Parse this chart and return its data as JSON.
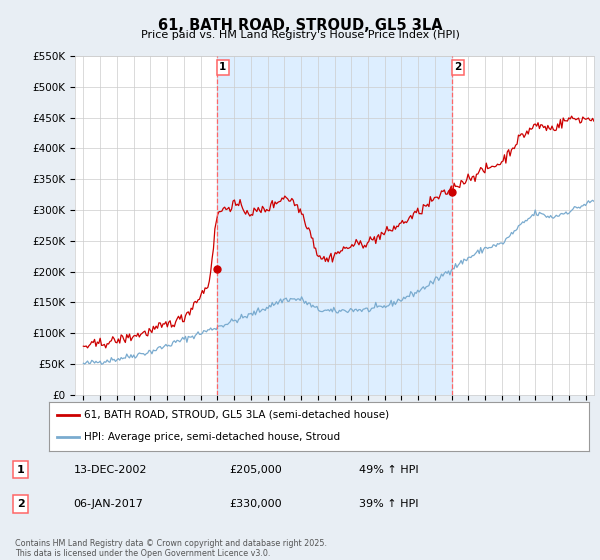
{
  "title": "61, BATH ROAD, STROUD, GL5 3LA",
  "subtitle": "Price paid vs. HM Land Registry's House Price Index (HPI)",
  "ylim": [
    0,
    550000
  ],
  "yticks": [
    0,
    50000,
    100000,
    150000,
    200000,
    250000,
    300000,
    350000,
    400000,
    450000,
    500000,
    550000
  ],
  "xlim_start": 1994.5,
  "xlim_end": 2025.5,
  "background_color": "#e8eef4",
  "plot_bg_color": "#ffffff",
  "grid_color": "#cccccc",
  "red_line_color": "#cc0000",
  "blue_line_color": "#7aabcf",
  "vline_color": "#ff6666",
  "shade_color": "#ddeeff",
  "vline1_x": 2002.96,
  "vline2_x": 2017.02,
  "dot1_x": 2002.96,
  "dot1_y": 205000,
  "dot2_x": 2017.02,
  "dot2_y": 330000,
  "legend_line1": "61, BATH ROAD, STROUD, GL5 3LA (semi-detached house)",
  "legend_line2": "HPI: Average price, semi-detached house, Stroud",
  "table": [
    {
      "num": "1",
      "date": "13-DEC-2002",
      "price": "£205,000",
      "hpi": "49% ↑ HPI"
    },
    {
      "num": "2",
      "date": "06-JAN-2017",
      "price": "£330,000",
      "hpi": "39% ↑ HPI"
    }
  ],
  "footer": "Contains HM Land Registry data © Crown copyright and database right 2025.\nThis data is licensed under the Open Government Licence v3.0."
}
